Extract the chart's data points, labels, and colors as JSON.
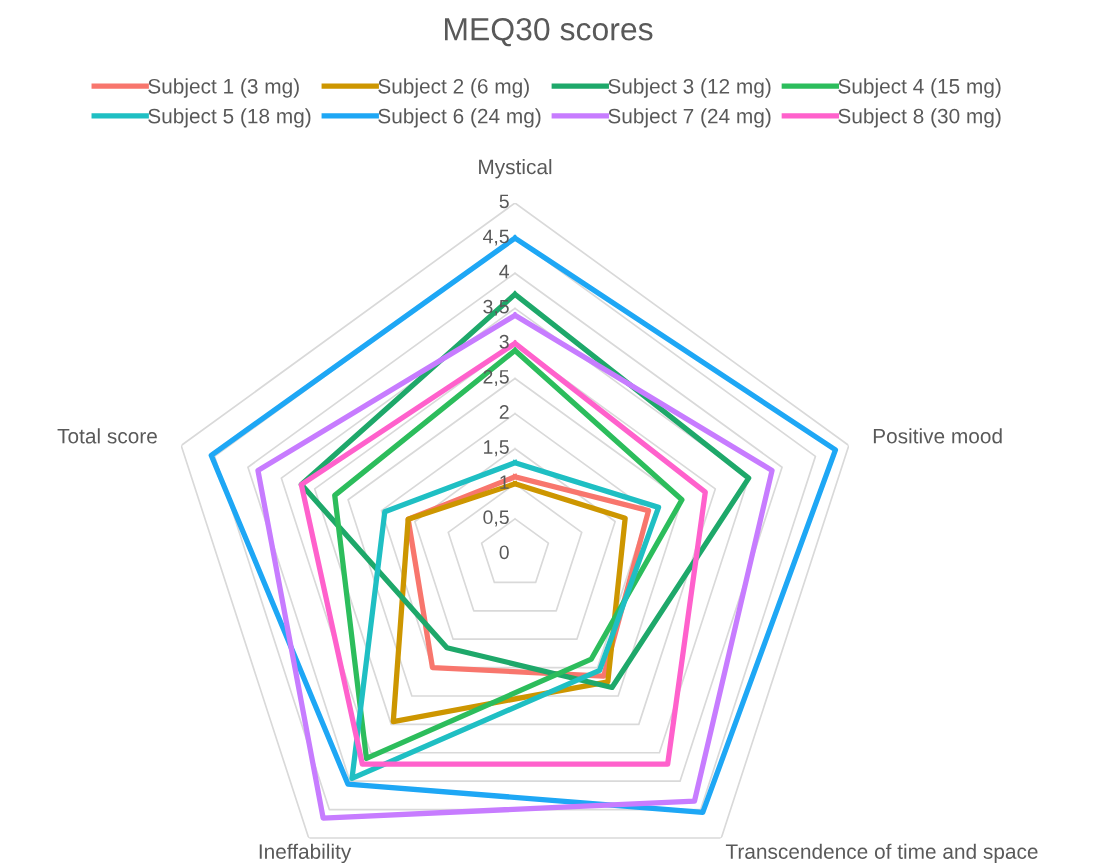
{
  "chart_data": {
    "type": "radar",
    "title": "MEQ30 scores",
    "categories": [
      "Mystical",
      "Positive mood",
      "Transcendence of time and space",
      "Ineffability",
      "Total score"
    ],
    "ylim": [
      0,
      5
    ],
    "yticks": [
      0,
      {
        "value": 0.5,
        "label": "0,5"
      },
      1,
      {
        "value": 1.5,
        "label": "1,5"
      },
      2,
      {
        "value": 2.5,
        "label": "2,5"
      },
      3,
      {
        "value": 3.5,
        "label": "3,5"
      },
      4,
      {
        "value": 4.5,
        "label": "4,5"
      },
      5
    ],
    "grid": true,
    "legend": "top",
    "marker": "none",
    "line_style": "solid",
    "series": [
      {
        "name": "Subject 1 (3 mg)",
        "color": "#f8766d",
        "values": [
          1.1,
          2.0,
          2.15,
          2.0,
          1.6
        ]
      },
      {
        "name": "Subject 2 (6 mg)",
        "color": "#cd9600",
        "values": [
          1.0,
          1.65,
          2.25,
          2.95,
          1.6
        ]
      },
      {
        "name": "Subject 3 (12 mg)",
        "color": "#1ea86a",
        "values": [
          3.7,
          3.5,
          2.35,
          1.65,
          3.2
        ]
      },
      {
        "name": "Subject 4 (15 mg)",
        "color": "#2cbd5c",
        "values": [
          2.9,
          2.5,
          1.85,
          3.6,
          2.7
        ]
      },
      {
        "name": "Subject 5 (18 mg)",
        "color": "#1fbfc3",
        "values": [
          1.3,
          2.15,
          2.05,
          3.95,
          1.95
        ]
      },
      {
        "name": "Subject 6 (24 mg)",
        "color": "#1ea7f5",
        "values": [
          4.5,
          4.8,
          4.55,
          4.05,
          4.55
        ]
      },
      {
        "name": "Subject 7 (24 mg)",
        "color": "#c77cff",
        "values": [
          3.4,
          3.85,
          4.35,
          4.65,
          3.85
        ]
      },
      {
        "name": "Subject 8 (30 mg)",
        "color": "#ff61cc",
        "values": [
          3.0,
          2.85,
          3.7,
          3.7,
          3.2
        ]
      }
    ]
  }
}
